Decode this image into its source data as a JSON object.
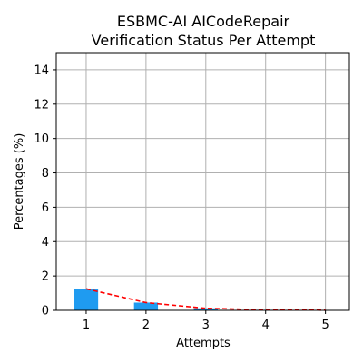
{
  "chart_data": {
    "type": "bar",
    "title_line1": "ESBMC-AI AICodeRepair",
    "title_line2": "Verification Status Per Attempt",
    "xlabel": "Attempts",
    "ylabel": "Percentages (%)",
    "x": [
      1,
      2,
      3,
      4,
      5
    ],
    "x_tick_labels": [
      "1",
      "2",
      "3",
      "4",
      "5"
    ],
    "xlim": [
      0.5,
      5.4
    ],
    "ylim": [
      0,
      15
    ],
    "y_ticks": [
      0,
      2,
      4,
      6,
      8,
      10,
      12,
      14
    ],
    "y_tick_labels": [
      "0",
      "2",
      "4",
      "6",
      "8",
      "10",
      "12",
      "14"
    ],
    "values": [
      1.25,
      0.45,
      0.12,
      0.03,
      0.01
    ],
    "trend_line": [
      1.25,
      0.45,
      0.12,
      0.03,
      0.01
    ],
    "grid": true,
    "colors": {
      "bar": "#1f9bf0",
      "trend": "#ff0000"
    }
  }
}
